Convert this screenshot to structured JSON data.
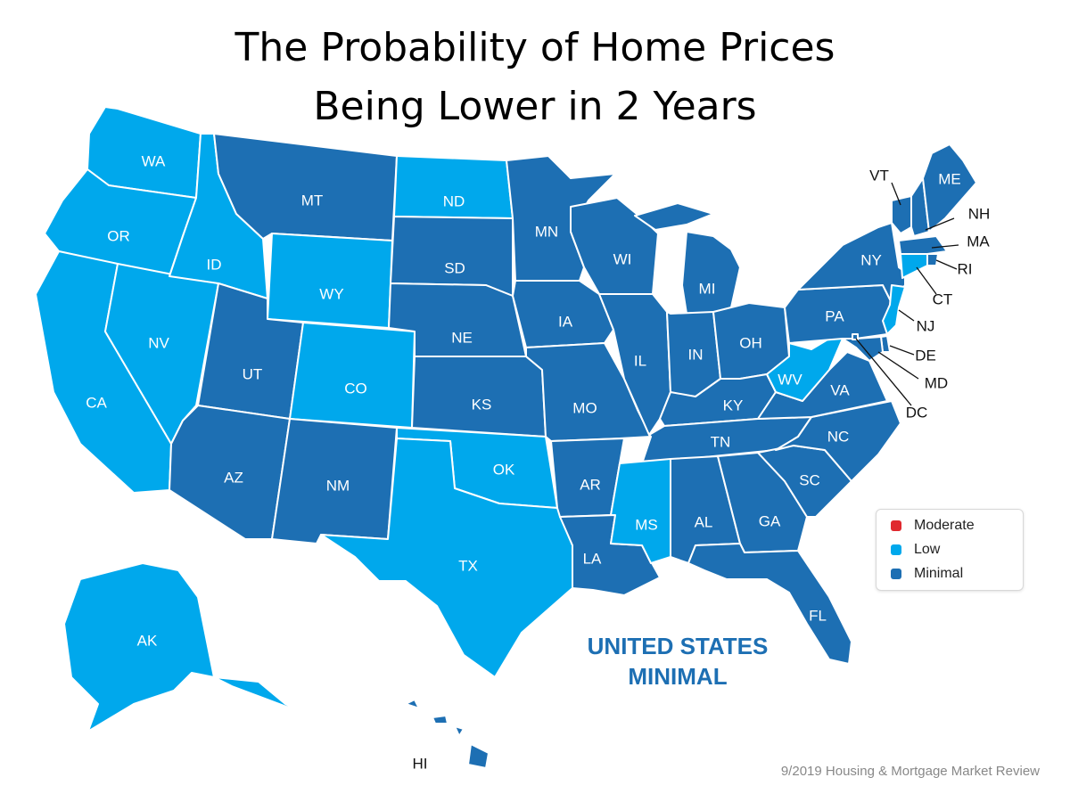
{
  "title": {
    "line1": "The Probability of Home Prices",
    "line2": "Being Lower in 2 Years"
  },
  "colors": {
    "Moderate": "#e0282e",
    "Low": "#00a8ec",
    "Minimal": "#1d6fb3"
  },
  "legend": [
    {
      "label": "Moderate",
      "category": "Moderate"
    },
    {
      "label": "Low",
      "category": "Low"
    },
    {
      "label": "Minimal",
      "category": "Minimal"
    }
  ],
  "states": {
    "WA": "Low",
    "OR": "Low",
    "CA": "Low",
    "NV": "Low",
    "ID": "Low",
    "MT": "Minimal",
    "WY": "Low",
    "UT": "Minimal",
    "AZ": "Minimal",
    "CO": "Low",
    "NM": "Minimal",
    "ND": "Low",
    "SD": "Minimal",
    "NE": "Minimal",
    "KS": "Minimal",
    "OK": "Low",
    "TX": "Low",
    "MN": "Minimal",
    "IA": "Minimal",
    "MO": "Minimal",
    "AR": "Minimal",
    "LA": "Minimal",
    "WI": "Minimal",
    "IL": "Minimal",
    "MI": "Minimal",
    "IN": "Minimal",
    "OH": "Minimal",
    "KY": "Minimal",
    "TN": "Minimal",
    "MS": "Low",
    "AL": "Minimal",
    "GA": "Minimal",
    "FL": "Minimal",
    "SC": "Minimal",
    "NC": "Minimal",
    "VA": "Minimal",
    "WV": "Low",
    "PA": "Minimal",
    "NY": "Minimal",
    "VT": "Minimal",
    "NH": "Minimal",
    "ME": "Minimal",
    "MA": "Minimal",
    "RI": "Minimal",
    "CT": "Low",
    "NJ": "Low",
    "DE": "Minimal",
    "MD": "Minimal",
    "DC": "Minimal",
    "AK": "Low",
    "HI": "Minimal"
  },
  "us_summary": {
    "line1": "UNITED STATES",
    "line2": "MINIMAL"
  },
  "source": "9/2019 Housing & Mortgage Market Review"
}
